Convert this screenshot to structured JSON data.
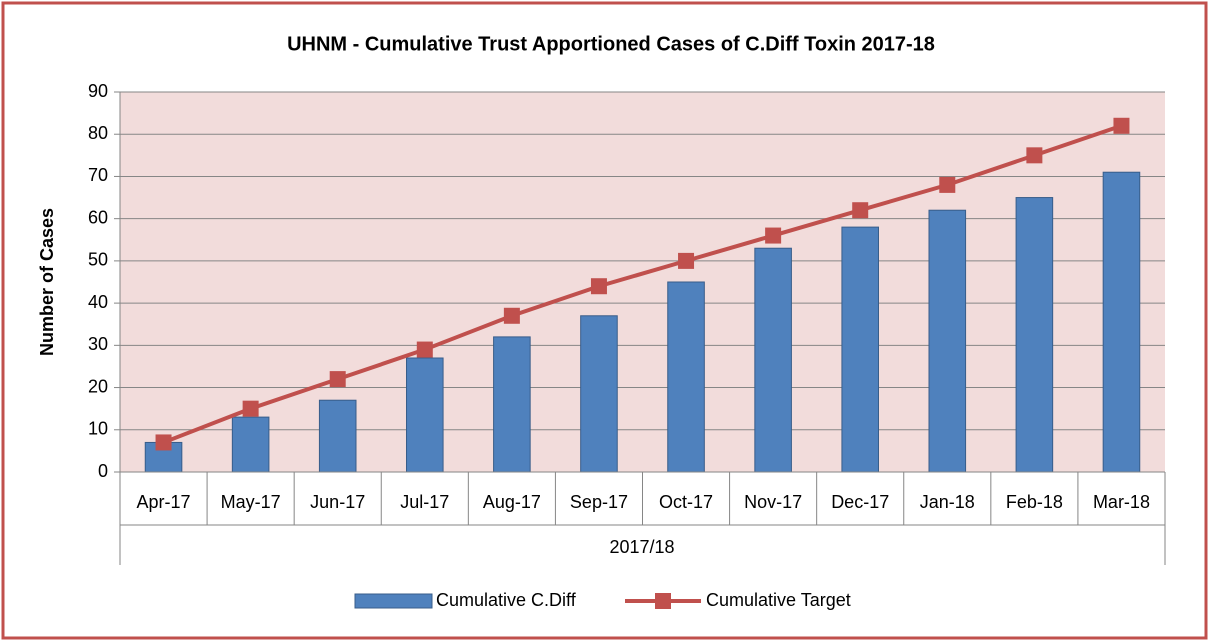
{
  "chart_data": {
    "type": "bar",
    "title": "UHNM - Cumulative Trust Apportioned Cases of C.Diff Toxin 2017-18",
    "y_label": "Number of Cases",
    "x_group_label": "2017/18",
    "categories": [
      "Apr-17",
      "May-17",
      "Jun-17",
      "Jul-17",
      "Aug-17",
      "Sep-17",
      "Oct-17",
      "Nov-17",
      "Dec-17",
      "Jan-18",
      "Feb-18",
      "Mar-18"
    ],
    "series": [
      {
        "name": "Cumulative C.Diff",
        "type": "bar",
        "color": "#4f81bd",
        "values": [
          7,
          13,
          17,
          27,
          32,
          37,
          45,
          53,
          58,
          62,
          65,
          71
        ]
      },
      {
        "name": "Cumulative Target",
        "type": "line",
        "color": "#c0504d",
        "values": [
          7,
          15,
          22,
          29,
          37,
          44,
          50,
          56,
          62,
          68,
          75,
          82
        ]
      }
    ],
    "ylim": [
      0,
      90
    ],
    "yticks": [
      0,
      10,
      20,
      30,
      40,
      50,
      60,
      70,
      80,
      90
    ],
    "grid": true,
    "legend": "bottom"
  }
}
